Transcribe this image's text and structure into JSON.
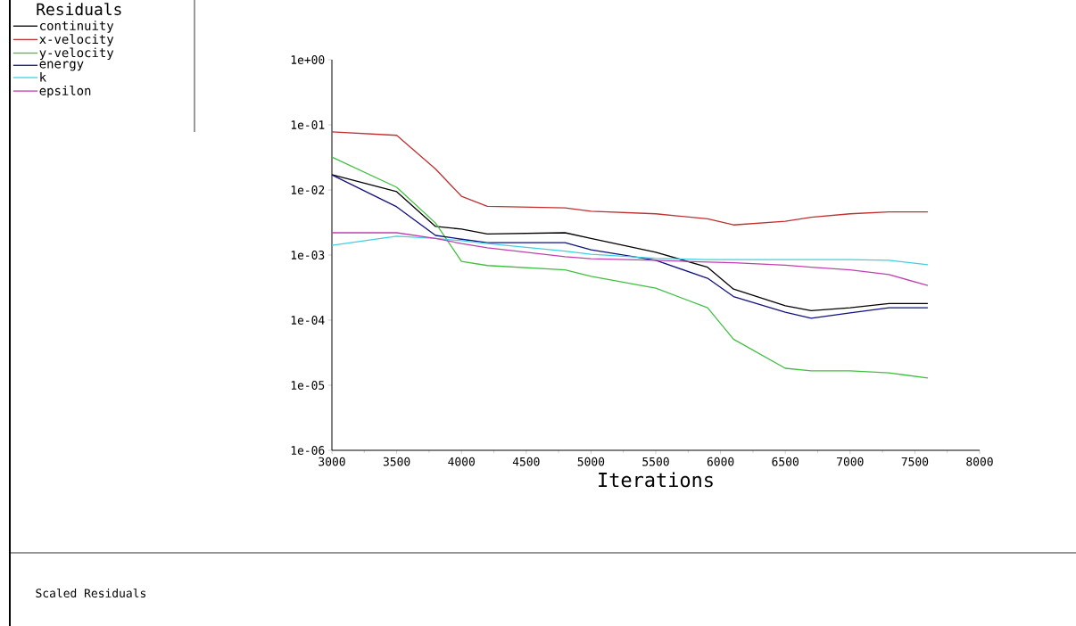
{
  "chart_data": {
    "type": "line",
    "xlabel": "Iterations",
    "legend_title": "Residuals",
    "legend": "top left",
    "log": "y",
    "grid": false,
    "marker": "none",
    "line_style": "solid",
    "annotations": [
      "Scaled Residuals"
    ],
    "xlim": [
      3000,
      8000
    ],
    "xticks": [
      3000,
      3500,
      4000,
      4500,
      5000,
      5500,
      6000,
      6500,
      7000,
      7500,
      8000
    ],
    "ylim": [
      1e-06,
      1
    ],
    "yticks": [
      {
        "value": 1,
        "label": "1e+00"
      },
      {
        "value": 0.1,
        "label": "1e-01"
      },
      {
        "value": 0.01,
        "label": "1e-02"
      },
      {
        "value": 0.001,
        "label": "1e-03"
      },
      {
        "value": 0.0001,
        "label": "1e-04"
      },
      {
        "value": 1e-05,
        "label": "1e-05"
      },
      {
        "value": 1e-06,
        "label": "1e-06"
      }
    ],
    "x": [
      3000,
      3500,
      3800,
      4000,
      4200,
      4800,
      5000,
      5500,
      5900,
      6100,
      6500,
      6700,
      7000,
      7300,
      7600
    ],
    "series": [
      {
        "name": "continuity",
        "color": "#000000",
        "values": [
          0.0171,
          0.0094,
          0.00275,
          0.0025,
          0.0021,
          0.0022,
          0.0018,
          0.0011,
          0.00065,
          0.0003,
          0.000166,
          0.00014,
          0.000155,
          0.00018,
          0.00018
        ]
      },
      {
        "name": "x-velocity",
        "color": "#c03030",
        "values": [
          0.078,
          0.069,
          0.021,
          0.008,
          0.0056,
          0.0053,
          0.0047,
          0.0043,
          0.0036,
          0.0029,
          0.0033,
          0.0038,
          0.0043,
          0.0046,
          0.0046
        ]
      },
      {
        "name": "y-velocity",
        "color": "#40c040",
        "values": [
          0.032,
          0.011,
          0.0031,
          0.0008,
          0.00069,
          0.00059,
          0.00047,
          0.00031,
          0.000155,
          5.1e-05,
          1.82e-05,
          1.66e-05,
          1.66e-05,
          1.55e-05,
          1.29e-05
        ]
      },
      {
        "name": "energy",
        "color": "#101080",
        "values": [
          0.017,
          0.0055,
          0.002,
          0.00175,
          0.00155,
          0.00155,
          0.0012,
          0.00083,
          0.00044,
          0.00023,
          0.000132,
          0.000107,
          0.000129,
          0.000155,
          0.000155
        ]
      },
      {
        "name": "k",
        "color": "#40d0e0",
        "values": [
          0.00141,
          0.00195,
          0.0018,
          0.00166,
          0.0015,
          0.00115,
          0.00103,
          0.00089,
          0.00085,
          0.00085,
          0.00085,
          0.00085,
          0.00085,
          0.00083,
          0.00071
        ]
      },
      {
        "name": "epsilon",
        "color": "#c040b0",
        "values": [
          0.0022,
          0.0022,
          0.0018,
          0.0015,
          0.00129,
          0.00094,
          0.00088,
          0.00083,
          0.00078,
          0.00076,
          0.0007,
          0.00065,
          0.00059,
          0.0005,
          0.00034
        ]
      }
    ]
  }
}
